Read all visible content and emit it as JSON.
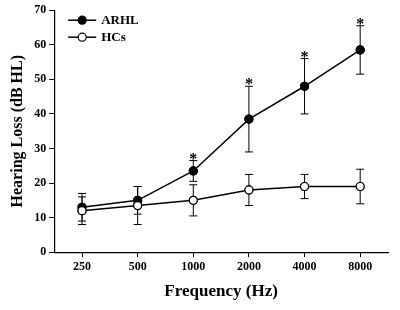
{
  "chart_data": {
    "type": "line",
    "x_label": "Frequency (Hz)",
    "y_label": "Hearing Loss (dB HL)",
    "categories": [
      "250",
      "500",
      "1000",
      "2000",
      "4000",
      "8000"
    ],
    "series": [
      {
        "name": "ARHL",
        "color": "#000000",
        "marker": "circle",
        "line_style": "solid",
        "values": [
          13,
          15,
          23.5,
          38.5,
          48,
          58.5
        ],
        "errors": [
          4,
          4,
          3,
          9.5,
          8,
          7
        ]
      },
      {
        "name": "HCs",
        "color": "#000000",
        "marker": "open_circle",
        "line_style": "solid",
        "values": [
          12,
          13.5,
          15,
          18,
          19,
          19
        ],
        "errors": [
          4,
          5.5,
          4.5,
          4.5,
          3.5,
          5
        ]
      }
    ],
    "annotations": [
      {
        "text": "*",
        "category": "1000"
      },
      {
        "text": "*",
        "category": "2000"
      },
      {
        "text": "*",
        "category": "4000"
      },
      {
        "text": "*",
        "category": "8000"
      }
    ],
    "ylim": [
      0,
      70
    ],
    "yticks": [
      0,
      10,
      20,
      30,
      40,
      50,
      60,
      70
    ],
    "grid": false,
    "legend": "top-left"
  }
}
